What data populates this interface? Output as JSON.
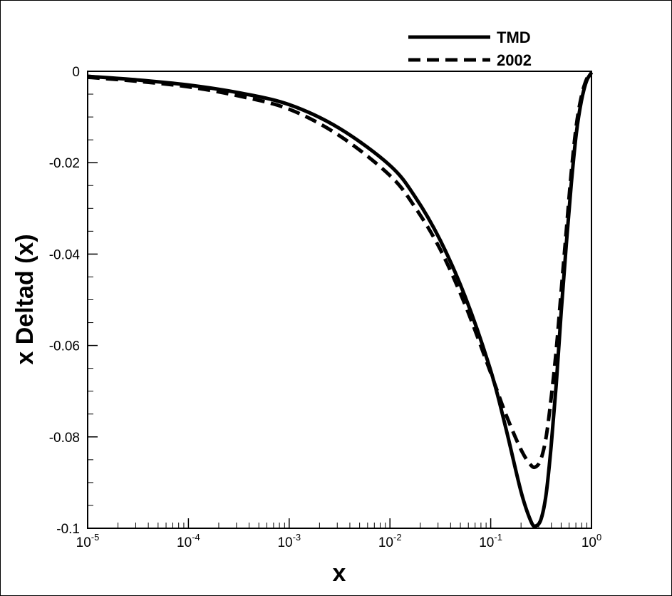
{
  "chart_data": {
    "type": "line",
    "xlabel": "x",
    "ylabel": "x Deltad (x)",
    "xscale": "log",
    "xlim": [
      1e-05,
      1
    ],
    "ylim": [
      -0.1,
      0
    ],
    "x_ticks": [
      {
        "base": "10",
        "exp": "-5",
        "value": 1e-05
      },
      {
        "base": "10",
        "exp": "-4",
        "value": 0.0001
      },
      {
        "base": "10",
        "exp": "-3",
        "value": 0.001
      },
      {
        "base": "10",
        "exp": "-2",
        "value": 0.01
      },
      {
        "base": "10",
        "exp": "-1",
        "value": 0.1
      },
      {
        "base": "10",
        "exp": "0",
        "value": 1
      }
    ],
    "y_ticks": [
      {
        "label": "0",
        "value": 0
      },
      {
        "label": "-0.02",
        "value": -0.02
      },
      {
        "label": "-0.04",
        "value": -0.04
      },
      {
        "label": "-0.06",
        "value": -0.06
      },
      {
        "label": "-0.08",
        "value": -0.08
      },
      {
        "label": "-0.1",
        "value": -0.1
      }
    ],
    "grid": false,
    "legend_position": "top-right",
    "series": [
      {
        "name": "TMD",
        "style": "solid",
        "color": "#000000",
        "x": [
          1e-05,
          3.16e-05,
          0.0001,
          0.000316,
          0.001,
          0.00316,
          0.01,
          0.0178,
          0.0316,
          0.0562,
          0.1,
          0.141,
          0.2,
          0.251,
          0.28,
          0.316,
          0.355,
          0.398,
          0.447,
          0.501,
          0.562,
          0.631,
          0.708,
          0.794,
          0.891,
          1.0
        ],
        "y": [
          -0.0011,
          -0.0019,
          -0.003,
          -0.0047,
          -0.0073,
          -0.0125,
          -0.0206,
          -0.0275,
          -0.037,
          -0.0495,
          -0.0655,
          -0.078,
          -0.092,
          -0.0985,
          -0.0995,
          -0.098,
          -0.0925,
          -0.082,
          -0.0685,
          -0.0525,
          -0.038,
          -0.0245,
          -0.0135,
          -0.0065,
          -0.0022,
          -0.0003
        ]
      },
      {
        "name": "2002",
        "style": "dashed",
        "color": "#000000",
        "x": [
          1e-05,
          3.16e-05,
          0.0001,
          0.000316,
          0.001,
          0.00316,
          0.01,
          0.0178,
          0.0316,
          0.0562,
          0.1,
          0.141,
          0.2,
          0.251,
          0.282,
          0.316,
          0.355,
          0.398,
          0.447,
          0.501,
          0.562,
          0.631,
          0.708,
          0.794,
          0.891,
          1.0
        ],
        "y": [
          -0.0013,
          -0.0022,
          -0.0034,
          -0.0054,
          -0.0083,
          -0.0141,
          -0.0228,
          -0.0298,
          -0.039,
          -0.0513,
          -0.066,
          -0.075,
          -0.0828,
          -0.0862,
          -0.0865,
          -0.0848,
          -0.08,
          -0.0715,
          -0.061,
          -0.048,
          -0.035,
          -0.022,
          -0.0118,
          -0.0055,
          -0.0018,
          -0.0002
        ]
      }
    ]
  }
}
